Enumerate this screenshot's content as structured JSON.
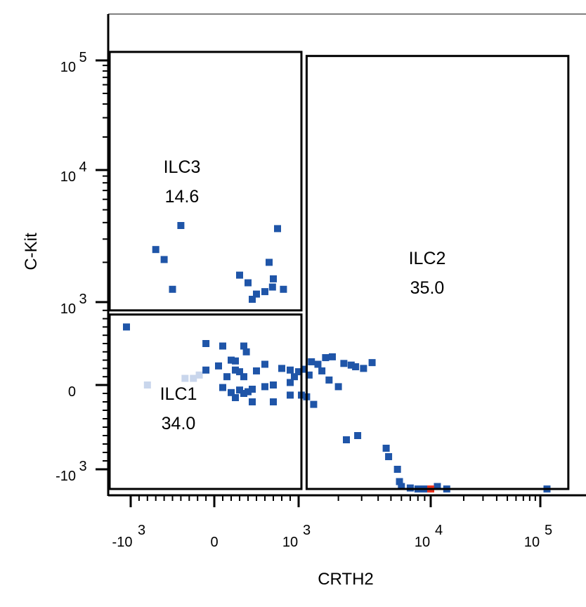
{
  "chart_data": {
    "type": "scatter",
    "xlabel": "CRTH2",
    "ylabel": "C-Kit",
    "x_scale": "biexponential",
    "y_scale": "biexponential",
    "xlim": [
      -1500,
      200000
    ],
    "ylim": [
      -1500,
      200000
    ],
    "x_ticks": [
      {
        "value": -1000,
        "base": "-10",
        "exp": "3"
      },
      {
        "value": 0,
        "base": "0",
        "exp": ""
      },
      {
        "value": 1000,
        "base": "10",
        "exp": "3"
      },
      {
        "value": 10000,
        "base": "10",
        "exp": "4"
      },
      {
        "value": 100000,
        "base": "10",
        "exp": "5"
      }
    ],
    "y_ticks": [
      {
        "value": -1000,
        "base": "-10",
        "exp": "3"
      },
      {
        "value": 0,
        "base": "0",
        "exp": ""
      },
      {
        "value": 1000,
        "base": "10",
        "exp": "3"
      },
      {
        "value": 10000,
        "base": "10",
        "exp": "4"
      },
      {
        "value": 100000,
        "base": "10",
        "exp": "5"
      }
    ],
    "gates": [
      {
        "name": "ILC3",
        "percent": "14.6",
        "x_range": [
          -1500,
          1050
        ],
        "y_range": [
          900,
          120000
        ]
      },
      {
        "name": "ILC1",
        "percent": "34.0",
        "x_range": [
          -1500,
          1050
        ],
        "y_range": [
          -1400,
          850
        ]
      },
      {
        "name": "ILC2",
        "percent": "35.0",
        "x_range": [
          1150,
          180000
        ],
        "y_range": [
          -1400,
          110000
        ]
      }
    ],
    "points": [
      {
        "x": -400,
        "y": 3800
      },
      {
        "x": -700,
        "y": 2500
      },
      {
        "x": -600,
        "y": 2100
      },
      {
        "x": -500,
        "y": 1250
      },
      {
        "x": 300,
        "y": 1600
      },
      {
        "x": 400,
        "y": 1400
      },
      {
        "x": 500,
        "y": 1150
      },
      {
        "x": 450,
        "y": 1050
      },
      {
        "x": 600,
        "y": 1200
      },
      {
        "x": 700,
        "y": 1500
      },
      {
        "x": 650,
        "y": 2000
      },
      {
        "x": 750,
        "y": 3600
      },
      {
        "x": 820,
        "y": 1250
      },
      {
        "x": 690,
        "y": 1300
      },
      {
        "x": -1100,
        "y": 700
      },
      {
        "x": -100,
        "y": 500
      },
      {
        "x": 100,
        "y": 470
      },
      {
        "x": 350,
        "y": 470
      },
      {
        "x": 380,
        "y": 400
      },
      {
        "x": 200,
        "y": 300
      },
      {
        "x": 250,
        "y": 290
      },
      {
        "x": 50,
        "y": 230
      },
      {
        "x": -100,
        "y": 180
      },
      {
        "x": 250,
        "y": 180
      },
      {
        "x": 300,
        "y": 160
      },
      {
        "x": 150,
        "y": 100
      },
      {
        "x": 350,
        "y": 100
      },
      {
        "x": 500,
        "y": 170
      },
      {
        "x": 600,
        "y": 250
      },
      {
        "x": 800,
        "y": 200
      },
      {
        "x": 900,
        "y": 180
      },
      {
        "x": 950,
        "y": 100
      },
      {
        "x": 1000,
        "y": 160
      },
      {
        "x": 1100,
        "y": 190
      },
      {
        "x": 1250,
        "y": 280
      },
      {
        "x": 1400,
        "y": 250
      },
      {
        "x": 1600,
        "y": 330
      },
      {
        "x": 1800,
        "y": 340
      },
      {
        "x": 2200,
        "y": 260
      },
      {
        "x": 2500,
        "y": 240
      },
      {
        "x": 2700,
        "y": 220
      },
      {
        "x": 3100,
        "y": 200
      },
      {
        "x": 3600,
        "y": 270
      },
      {
        "x": 1500,
        "y": 170
      },
      {
        "x": 1200,
        "y": 120
      },
      {
        "x": 1700,
        "y": 60
      },
      {
        "x": 2000,
        "y": -20
      },
      {
        "x": 900,
        "y": 30
      },
      {
        "x": 700,
        "y": 0
      },
      {
        "x": 600,
        "y": -20
      },
      {
        "x": 450,
        "y": -50
      },
      {
        "x": 400,
        "y": -80
      },
      {
        "x": 300,
        "y": -60
      },
      {
        "x": 350,
        "y": -100
      },
      {
        "x": 200,
        "y": -90
      },
      {
        "x": 100,
        "y": -30
      },
      {
        "x": 250,
        "y": -150
      },
      {
        "x": 450,
        "y": -200
      },
      {
        "x": 700,
        "y": -200
      },
      {
        "x": 900,
        "y": -120
      },
      {
        "x": 1050,
        "y": -120
      },
      {
        "x": 1150,
        "y": -140
      },
      {
        "x": 1300,
        "y": -230
      },
      {
        "x": 2300,
        "y": -650
      },
      {
        "x": 2800,
        "y": -600
      },
      {
        "x": 4600,
        "y": -750
      },
      {
        "x": 4800,
        "y": -850
      },
      {
        "x": 5600,
        "y": -1000
      },
      {
        "x": 5800,
        "y": -1250
      },
      {
        "x": 6000,
        "y": -1350
      },
      {
        "x": 7000,
        "y": -1380
      },
      {
        "x": 8000,
        "y": -1400
      },
      {
        "x": 9000,
        "y": -1400
      },
      {
        "x": 11500,
        "y": -1350
      },
      {
        "x": 14000,
        "y": -1400
      },
      {
        "x": 115000,
        "y": -1400
      }
    ],
    "faint_points": [
      {
        "x": -800,
        "y": 0
      },
      {
        "x": -350,
        "y": 80
      },
      {
        "x": -250,
        "y": 80
      },
      {
        "x": -180,
        "y": 120
      }
    ],
    "highlight_points": [
      {
        "x": 10000,
        "y": -1400
      }
    ],
    "colors": {
      "dot": "#1f55a8",
      "faint_dot": "#c9d6ec",
      "highlight": "#e8321e",
      "gate_stroke": "#000000",
      "axis": "#000000"
    }
  }
}
